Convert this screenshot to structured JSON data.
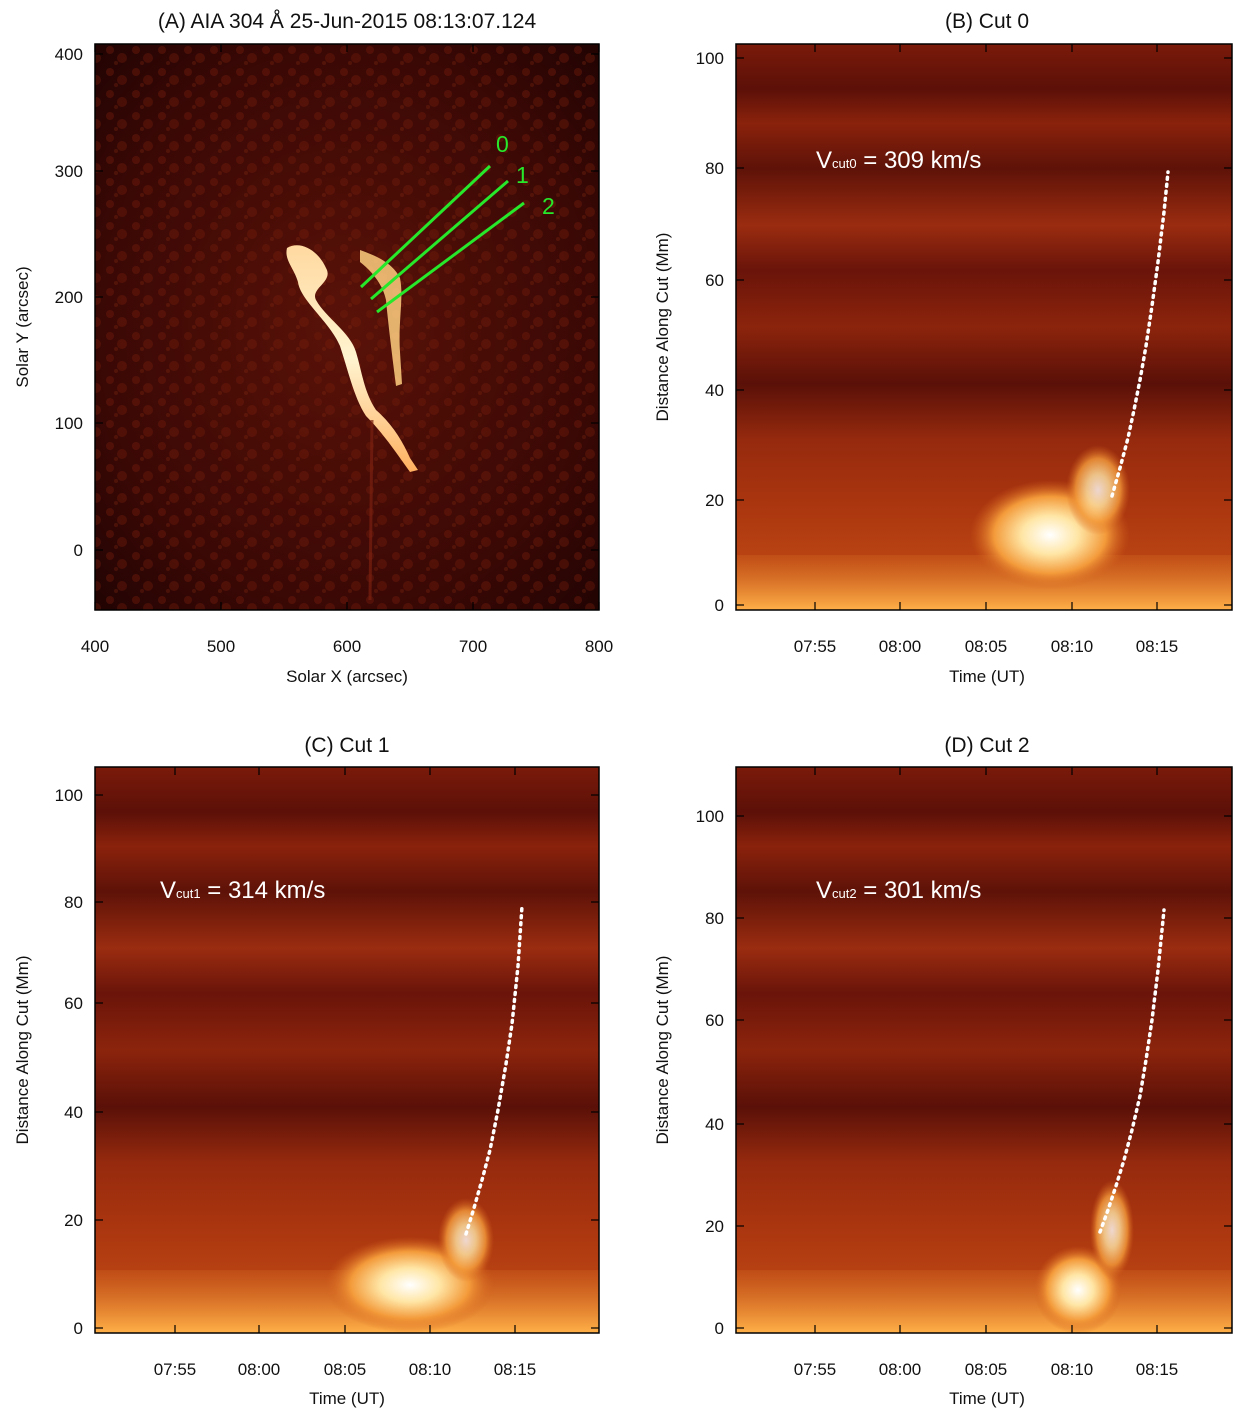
{
  "colors": {
    "accent_green": "#27e82a",
    "trace_white": "#ffffff",
    "plasma_dark": "#4a0a08",
    "plasma_bright": "#fff4d0"
  },
  "panel_a": {
    "title": "(A) AIA 304 Å 25-Jun-2015 08:13:07.124",
    "xlabel": "Solar X (arcsec)",
    "ylabel": "Solar Y (arcsec)",
    "xticks": [
      "400",
      "500",
      "600",
      "700",
      "800"
    ],
    "yticks": [
      "0",
      "100",
      "200",
      "300",
      "400"
    ],
    "cut_labels": [
      "0",
      "1",
      "2"
    ]
  },
  "panel_b": {
    "title": "(B) Cut 0",
    "xlabel": "Time (UT)",
    "ylabel": "Distance Along Cut (Mm)",
    "xticks": [
      "07:55",
      "08:00",
      "08:05",
      "08:10",
      "08:15"
    ],
    "yticks": [
      "0",
      "20",
      "40",
      "60",
      "80",
      "100"
    ],
    "vel_label": "V",
    "vel_sub": "cut0",
    "vel_value": " = 309 km/s"
  },
  "panel_c": {
    "title": "(C) Cut 1",
    "xlabel": "Time (UT)",
    "ylabel": "Distance Along Cut (Mm)",
    "xticks": [
      "07:55",
      "08:00",
      "08:05",
      "08:10",
      "08:15"
    ],
    "yticks": [
      "0",
      "20",
      "40",
      "60",
      "80",
      "100"
    ],
    "vel_label": "V",
    "vel_sub": "cut1",
    "vel_value": " = 314 km/s"
  },
  "panel_d": {
    "title": "(D) Cut 2",
    "xlabel": "Time (UT)",
    "ylabel": "Distance Along Cut (Mm)",
    "xticks": [
      "07:55",
      "08:00",
      "08:05",
      "08:10",
      "08:15"
    ],
    "yticks": [
      "0",
      "20",
      "40",
      "60",
      "80",
      "100"
    ],
    "vel_label": "V",
    "vel_sub": "cut2",
    "vel_value": " = 301 km/s"
  }
}
